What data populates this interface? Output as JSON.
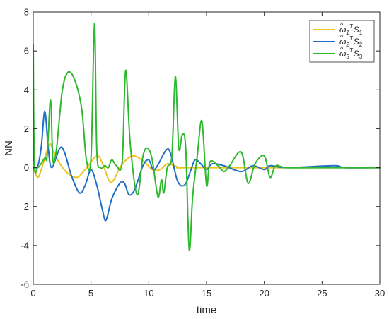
{
  "chart_data": {
    "type": "line",
    "xlabel": "time",
    "ylabel": "NN",
    "xlim": [
      0,
      30
    ],
    "ylim": [
      -6,
      8
    ],
    "xticks": [
      0,
      5,
      10,
      15,
      20,
      25,
      30
    ],
    "yticks": [
      -6,
      -4,
      -2,
      0,
      2,
      4,
      6,
      8
    ],
    "grid": false,
    "legend_position": "top-right",
    "series": [
      {
        "name": "ω̂₁ᵀS₁",
        "legend": {
          "base": "ω",
          "sub": "1",
          "sup": "T",
          "tail": "S",
          "tailsub": "1"
        },
        "color": "#EDC21A",
        "points": [
          [
            0,
            0
          ],
          [
            0.4,
            -0.5
          ],
          [
            0.8,
            0.1
          ],
          [
            1.4,
            1.2
          ],
          [
            1.7,
            0.9
          ],
          [
            2.2,
            0.3
          ],
          [
            3.0,
            -0.3
          ],
          [
            3.8,
            -0.5
          ],
          [
            4.5,
            -0.1
          ],
          [
            5.5,
            0.6
          ],
          [
            6.0,
            0.2
          ],
          [
            6.6,
            -0.7
          ],
          [
            7.0,
            -0.6
          ],
          [
            7.6,
            0.1
          ],
          [
            8.6,
            0.6
          ],
          [
            9.6,
            0.3
          ],
          [
            10.3,
            -0.1
          ],
          [
            11.0,
            -0.1
          ],
          [
            11.6,
            0.2
          ],
          [
            12.2,
            0.1
          ],
          [
            12.8,
            0
          ],
          [
            14,
            0
          ],
          [
            30,
            0
          ]
        ]
      },
      {
        "name": "ω̂₂ᵀS₂",
        "legend": {
          "base": "ω",
          "sub": "2",
          "sup": "T",
          "tail": "S",
          "tailsub": "2"
        },
        "color": "#1F6FC4",
        "points": [
          [
            0,
            0
          ],
          [
            0.4,
            0.1
          ],
          [
            0.7,
            1.1
          ],
          [
            1.0,
            2.9
          ],
          [
            1.3,
            1.0
          ],
          [
            1.6,
            0
          ],
          [
            2.3,
            1.0
          ],
          [
            2.7,
            0.8
          ],
          [
            3.3,
            -0.4
          ],
          [
            4.0,
            -1.3
          ],
          [
            4.5,
            -0.9
          ],
          [
            5.0,
            -0.1
          ],
          [
            5.5,
            -0.9
          ],
          [
            6.0,
            -2.2
          ],
          [
            6.3,
            -2.7
          ],
          [
            6.8,
            -1.6
          ],
          [
            7.5,
            -0.8
          ],
          [
            7.9,
            -0.8
          ],
          [
            8.3,
            -1.4
          ],
          [
            8.8,
            -1.1
          ],
          [
            9.5,
            0.1
          ],
          [
            10.0,
            0.4
          ],
          [
            10.5,
            -0.1
          ],
          [
            11.5,
            0.9
          ],
          [
            11.9,
            0.7
          ],
          [
            12.5,
            -0.7
          ],
          [
            13.1,
            -0.9
          ],
          [
            13.6,
            -0.2
          ],
          [
            14.0,
            0.4
          ],
          [
            14.5,
            0.2
          ],
          [
            15.0,
            -0.1
          ],
          [
            15.5,
            0.2
          ],
          [
            16.5,
            0.1
          ],
          [
            18.0,
            -0.2
          ],
          [
            19.0,
            0.1
          ],
          [
            20.0,
            -0.1
          ],
          [
            20.5,
            0.1
          ],
          [
            22,
            0
          ],
          [
            26,
            0.1
          ],
          [
            27,
            0
          ],
          [
            30,
            0
          ]
        ]
      },
      {
        "name": "ω̂₃ᵀS₃",
        "legend": {
          "base": "ω",
          "sub": "3",
          "sup": "T",
          "tail": "S",
          "tailsub": "3"
        },
        "color": "#2EB82E",
        "points": [
          [
            0,
            6.3
          ],
          [
            0.1,
            0.3
          ],
          [
            0.4,
            0
          ],
          [
            1.0,
            0.5
          ],
          [
            1.2,
            0.6
          ],
          [
            1.5,
            3.5
          ],
          [
            1.7,
            0.4
          ],
          [
            2.0,
            0.9
          ],
          [
            2.5,
            3.9
          ],
          [
            3.0,
            4.9
          ],
          [
            3.6,
            4.5
          ],
          [
            4.2,
            3.0
          ],
          [
            4.6,
            0.4
          ],
          [
            5.0,
            0.5
          ],
          [
            5.3,
            7.4
          ],
          [
            5.5,
            0.9
          ],
          [
            5.8,
            0
          ],
          [
            6.2,
            0.1
          ],
          [
            6.5,
            0
          ],
          [
            6.8,
            0.4
          ],
          [
            7.2,
            0.1
          ],
          [
            7.7,
            0.3
          ],
          [
            8.0,
            5.0
          ],
          [
            8.4,
            1.2
          ],
          [
            9.0,
            -1.4
          ],
          [
            9.5,
            0.6
          ],
          [
            9.9,
            1.0
          ],
          [
            10.3,
            0.4
          ],
          [
            10.8,
            -1.5
          ],
          [
            11.1,
            -0.6
          ],
          [
            11.3,
            -1.3
          ],
          [
            11.6,
            0
          ],
          [
            12.0,
            0.6
          ],
          [
            12.3,
            4.7
          ],
          [
            12.6,
            1.0
          ],
          [
            12.9,
            1.7
          ],
          [
            13.2,
            1.0
          ],
          [
            13.5,
            -4.2
          ],
          [
            13.8,
            -1.5
          ],
          [
            14.2,
            0.6
          ],
          [
            14.6,
            2.4
          ],
          [
            15.0,
            -0.9
          ],
          [
            15.3,
            0.3
          ],
          [
            16.0,
            0.1
          ],
          [
            16.5,
            -0.2
          ],
          [
            17.0,
            0.1
          ],
          [
            18.0,
            0.8
          ],
          [
            18.6,
            -0.8
          ],
          [
            19.2,
            0.2
          ],
          [
            20.0,
            0.6
          ],
          [
            20.5,
            -0.5
          ],
          [
            21.0,
            0.1
          ],
          [
            22.0,
            0
          ],
          [
            26.0,
            0
          ],
          [
            30,
            0
          ]
        ]
      }
    ]
  }
}
